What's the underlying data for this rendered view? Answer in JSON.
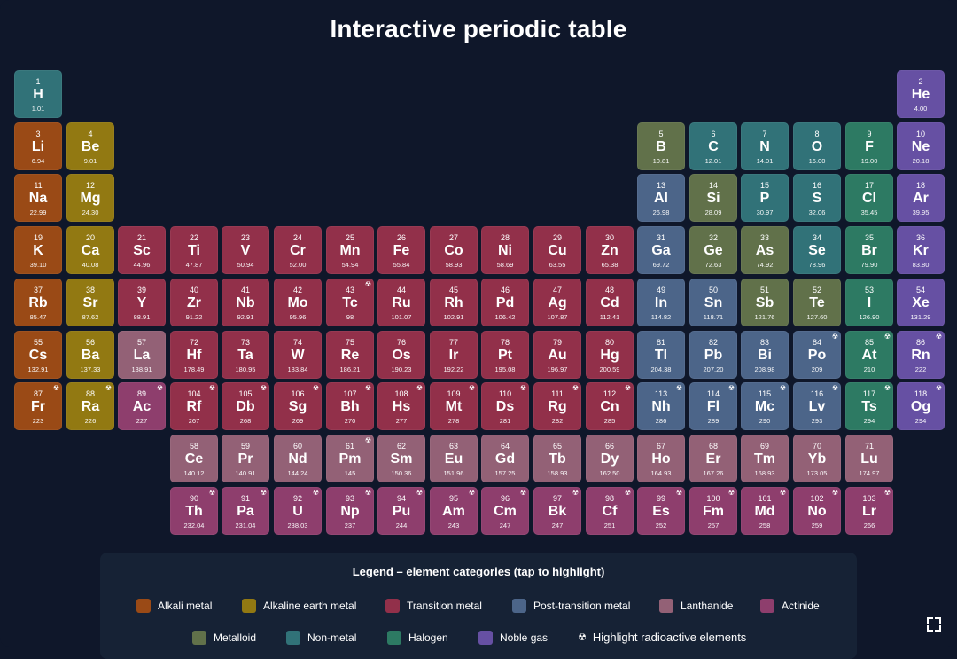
{
  "title": "Interactive periodic table",
  "categories": {
    "alkali": {
      "label": "Alkali metal",
      "color": "#9a4a16"
    },
    "alkaline": {
      "label": "Alkaline earth metal",
      "color": "#927912"
    },
    "transition": {
      "label": "Transition metal",
      "color": "#92304a"
    },
    "post": {
      "label": "Post-transition metal",
      "color": "#4c6589"
    },
    "lanthanide": {
      "label": "Lanthanide",
      "color": "#936176"
    },
    "actinide": {
      "label": "Actinide",
      "color": "#8e3e6d"
    },
    "metalloid": {
      "label": "Metalloid",
      "color": "#61714a"
    },
    "nonmetal": {
      "label": "Non-metal",
      "color": "#317278"
    },
    "halogen": {
      "label": "Halogen",
      "color": "#2d7a63"
    },
    "noble": {
      "label": "Noble gas",
      "color": "#6650a3"
    }
  },
  "radioactive_icon": "☢",
  "elements": [
    {
      "n": 1,
      "s": "H",
      "m": "1.01",
      "c": "nonmetal",
      "r": 1,
      "col": 1
    },
    {
      "n": 2,
      "s": "He",
      "m": "4.00",
      "c": "noble",
      "r": 1,
      "col": 18
    },
    {
      "n": 3,
      "s": "Li",
      "m": "6.94",
      "c": "alkali",
      "r": 2,
      "col": 1
    },
    {
      "n": 4,
      "s": "Be",
      "m": "9.01",
      "c": "alkaline",
      "r": 2,
      "col": 2
    },
    {
      "n": 5,
      "s": "B",
      "m": "10.81",
      "c": "metalloid",
      "r": 2,
      "col": 13
    },
    {
      "n": 6,
      "s": "C",
      "m": "12.01",
      "c": "nonmetal",
      "r": 2,
      "col": 14
    },
    {
      "n": 7,
      "s": "N",
      "m": "14.01",
      "c": "nonmetal",
      "r": 2,
      "col": 15
    },
    {
      "n": 8,
      "s": "O",
      "m": "16.00",
      "c": "nonmetal",
      "r": 2,
      "col": 16
    },
    {
      "n": 9,
      "s": "F",
      "m": "19.00",
      "c": "halogen",
      "r": 2,
      "col": 17
    },
    {
      "n": 10,
      "s": "Ne",
      "m": "20.18",
      "c": "noble",
      "r": 2,
      "col": 18
    },
    {
      "n": 11,
      "s": "Na",
      "m": "22.99",
      "c": "alkali",
      "r": 3,
      "col": 1
    },
    {
      "n": 12,
      "s": "Mg",
      "m": "24.30",
      "c": "alkaline",
      "r": 3,
      "col": 2
    },
    {
      "n": 13,
      "s": "Al",
      "m": "26.98",
      "c": "post",
      "r": 3,
      "col": 13
    },
    {
      "n": 14,
      "s": "Si",
      "m": "28.09",
      "c": "metalloid",
      "r": 3,
      "col": 14
    },
    {
      "n": 15,
      "s": "P",
      "m": "30.97",
      "c": "nonmetal",
      "r": 3,
      "col": 15
    },
    {
      "n": 16,
      "s": "S",
      "m": "32.06",
      "c": "nonmetal",
      "r": 3,
      "col": 16
    },
    {
      "n": 17,
      "s": "Cl",
      "m": "35.45",
      "c": "halogen",
      "r": 3,
      "col": 17
    },
    {
      "n": 18,
      "s": "Ar",
      "m": "39.95",
      "c": "noble",
      "r": 3,
      "col": 18
    },
    {
      "n": 19,
      "s": "K",
      "m": "39.10",
      "c": "alkali",
      "r": 4,
      "col": 1
    },
    {
      "n": 20,
      "s": "Ca",
      "m": "40.08",
      "c": "alkaline",
      "r": 4,
      "col": 2
    },
    {
      "n": 21,
      "s": "Sc",
      "m": "44.96",
      "c": "transition",
      "r": 4,
      "col": 3
    },
    {
      "n": 22,
      "s": "Ti",
      "m": "47.87",
      "c": "transition",
      "r": 4,
      "col": 4
    },
    {
      "n": 23,
      "s": "V",
      "m": "50.94",
      "c": "transition",
      "r": 4,
      "col": 5
    },
    {
      "n": 24,
      "s": "Cr",
      "m": "52.00",
      "c": "transition",
      "r": 4,
      "col": 6
    },
    {
      "n": 25,
      "s": "Mn",
      "m": "54.94",
      "c": "transition",
      "r": 4,
      "col": 7
    },
    {
      "n": 26,
      "s": "Fe",
      "m": "55.84",
      "c": "transition",
      "r": 4,
      "col": 8
    },
    {
      "n": 27,
      "s": "Co",
      "m": "58.93",
      "c": "transition",
      "r": 4,
      "col": 9
    },
    {
      "n": 28,
      "s": "Ni",
      "m": "58.69",
      "c": "transition",
      "r": 4,
      "col": 10
    },
    {
      "n": 29,
      "s": "Cu",
      "m": "63.55",
      "c": "transition",
      "r": 4,
      "col": 11
    },
    {
      "n": 30,
      "s": "Zn",
      "m": "65.38",
      "c": "transition",
      "r": 4,
      "col": 12
    },
    {
      "n": 31,
      "s": "Ga",
      "m": "69.72",
      "c": "post",
      "r": 4,
      "col": 13
    },
    {
      "n": 32,
      "s": "Ge",
      "m": "72.63",
      "c": "metalloid",
      "r": 4,
      "col": 14
    },
    {
      "n": 33,
      "s": "As",
      "m": "74.92",
      "c": "metalloid",
      "r": 4,
      "col": 15
    },
    {
      "n": 34,
      "s": "Se",
      "m": "78.96",
      "c": "nonmetal",
      "r": 4,
      "col": 16
    },
    {
      "n": 35,
      "s": "Br",
      "m": "79.90",
      "c": "halogen",
      "r": 4,
      "col": 17
    },
    {
      "n": 36,
      "s": "Kr",
      "m": "83.80",
      "c": "noble",
      "r": 4,
      "col": 18
    },
    {
      "n": 37,
      "s": "Rb",
      "m": "85.47",
      "c": "alkali",
      "r": 5,
      "col": 1
    },
    {
      "n": 38,
      "s": "Sr",
      "m": "87.62",
      "c": "alkaline",
      "r": 5,
      "col": 2
    },
    {
      "n": 39,
      "s": "Y",
      "m": "88.91",
      "c": "transition",
      "r": 5,
      "col": 3
    },
    {
      "n": 40,
      "s": "Zr",
      "m": "91.22",
      "c": "transition",
      "r": 5,
      "col": 4
    },
    {
      "n": 41,
      "s": "Nb",
      "m": "92.91",
      "c": "transition",
      "r": 5,
      "col": 5
    },
    {
      "n": 42,
      "s": "Mo",
      "m": "95.96",
      "c": "transition",
      "r": 5,
      "col": 6
    },
    {
      "n": 43,
      "s": "Tc",
      "m": "98",
      "c": "transition",
      "r": 5,
      "col": 7,
      "rad": true
    },
    {
      "n": 44,
      "s": "Ru",
      "m": "101.07",
      "c": "transition",
      "r": 5,
      "col": 8
    },
    {
      "n": 45,
      "s": "Rh",
      "m": "102.91",
      "c": "transition",
      "r": 5,
      "col": 9
    },
    {
      "n": 46,
      "s": "Pd",
      "m": "106.42",
      "c": "transition",
      "r": 5,
      "col": 10
    },
    {
      "n": 47,
      "s": "Ag",
      "m": "107.87",
      "c": "transition",
      "r": 5,
      "col": 11
    },
    {
      "n": 48,
      "s": "Cd",
      "m": "112.41",
      "c": "transition",
      "r": 5,
      "col": 12
    },
    {
      "n": 49,
      "s": "In",
      "m": "114.82",
      "c": "post",
      "r": 5,
      "col": 13
    },
    {
      "n": 50,
      "s": "Sn",
      "m": "118.71",
      "c": "post",
      "r": 5,
      "col": 14
    },
    {
      "n": 51,
      "s": "Sb",
      "m": "121.76",
      "c": "metalloid",
      "r": 5,
      "col": 15
    },
    {
      "n": 52,
      "s": "Te",
      "m": "127.60",
      "c": "metalloid",
      "r": 5,
      "col": 16
    },
    {
      "n": 53,
      "s": "I",
      "m": "126.90",
      "c": "halogen",
      "r": 5,
      "col": 17
    },
    {
      "n": 54,
      "s": "Xe",
      "m": "131.29",
      "c": "noble",
      "r": 5,
      "col": 18
    },
    {
      "n": 55,
      "s": "Cs",
      "m": "132.91",
      "c": "alkali",
      "r": 6,
      "col": 1
    },
    {
      "n": 56,
      "s": "Ba",
      "m": "137.33",
      "c": "alkaline",
      "r": 6,
      "col": 2
    },
    {
      "n": 57,
      "s": "La",
      "m": "138.91",
      "c": "lanthanide",
      "r": 6,
      "col": 3
    },
    {
      "n": 72,
      "s": "Hf",
      "m": "178.49",
      "c": "transition",
      "r": 6,
      "col": 4
    },
    {
      "n": 73,
      "s": "Ta",
      "m": "180.95",
      "c": "transition",
      "r": 6,
      "col": 5
    },
    {
      "n": 74,
      "s": "W",
      "m": "183.84",
      "c": "transition",
      "r": 6,
      "col": 6
    },
    {
      "n": 75,
      "s": "Re",
      "m": "186.21",
      "c": "transition",
      "r": 6,
      "col": 7
    },
    {
      "n": 76,
      "s": "Os",
      "m": "190.23",
      "c": "transition",
      "r": 6,
      "col": 8
    },
    {
      "n": 77,
      "s": "Ir",
      "m": "192.22",
      "c": "transition",
      "r": 6,
      "col": 9
    },
    {
      "n": 78,
      "s": "Pt",
      "m": "195.08",
      "c": "transition",
      "r": 6,
      "col": 10
    },
    {
      "n": 79,
      "s": "Au",
      "m": "196.97",
      "c": "transition",
      "r": 6,
      "col": 11
    },
    {
      "n": 80,
      "s": "Hg",
      "m": "200.59",
      "c": "transition",
      "r": 6,
      "col": 12
    },
    {
      "n": 81,
      "s": "Tl",
      "m": "204.38",
      "c": "post",
      "r": 6,
      "col": 13
    },
    {
      "n": 82,
      "s": "Pb",
      "m": "207.20",
      "c": "post",
      "r": 6,
      "col": 14
    },
    {
      "n": 83,
      "s": "Bi",
      "m": "208.98",
      "c": "post",
      "r": 6,
      "col": 15
    },
    {
      "n": 84,
      "s": "Po",
      "m": "209",
      "c": "post",
      "r": 6,
      "col": 16,
      "rad": true
    },
    {
      "n": 85,
      "s": "At",
      "m": "210",
      "c": "halogen",
      "r": 6,
      "col": 17,
      "rad": true
    },
    {
      "n": 86,
      "s": "Rn",
      "m": "222",
      "c": "noble",
      "r": 6,
      "col": 18,
      "rad": true
    },
    {
      "n": 87,
      "s": "Fr",
      "m": "223",
      "c": "alkali",
      "r": 7,
      "col": 1,
      "rad": true
    },
    {
      "n": 88,
      "s": "Ra",
      "m": "226",
      "c": "alkaline",
      "r": 7,
      "col": 2,
      "rad": true
    },
    {
      "n": 89,
      "s": "Ac",
      "m": "227",
      "c": "actinide",
      "r": 7,
      "col": 3,
      "rad": true
    },
    {
      "n": 104,
      "s": "Rf",
      "m": "267",
      "c": "transition",
      "r": 7,
      "col": 4,
      "rad": true
    },
    {
      "n": 105,
      "s": "Db",
      "m": "268",
      "c": "transition",
      "r": 7,
      "col": 5,
      "rad": true
    },
    {
      "n": 106,
      "s": "Sg",
      "m": "269",
      "c": "transition",
      "r": 7,
      "col": 6,
      "rad": true
    },
    {
      "n": 107,
      "s": "Bh",
      "m": "270",
      "c": "transition",
      "r": 7,
      "col": 7,
      "rad": true
    },
    {
      "n": 108,
      "s": "Hs",
      "m": "277",
      "c": "transition",
      "r": 7,
      "col": 8,
      "rad": true
    },
    {
      "n": 109,
      "s": "Mt",
      "m": "278",
      "c": "transition",
      "r": 7,
      "col": 9,
      "rad": true
    },
    {
      "n": 110,
      "s": "Ds",
      "m": "281",
      "c": "transition",
      "r": 7,
      "col": 10,
      "rad": true
    },
    {
      "n": 111,
      "s": "Rg",
      "m": "282",
      "c": "transition",
      "r": 7,
      "col": 11,
      "rad": true
    },
    {
      "n": 112,
      "s": "Cn",
      "m": "285",
      "c": "transition",
      "r": 7,
      "col": 12,
      "rad": true
    },
    {
      "n": 113,
      "s": "Nh",
      "m": "286",
      "c": "post",
      "r": 7,
      "col": 13,
      "rad": true
    },
    {
      "n": 114,
      "s": "Fl",
      "m": "289",
      "c": "post",
      "r": 7,
      "col": 14,
      "rad": true
    },
    {
      "n": 115,
      "s": "Mc",
      "m": "290",
      "c": "post",
      "r": 7,
      "col": 15,
      "rad": true
    },
    {
      "n": 116,
      "s": "Lv",
      "m": "293",
      "c": "post",
      "r": 7,
      "col": 16,
      "rad": true
    },
    {
      "n": 117,
      "s": "Ts",
      "m": "294",
      "c": "halogen",
      "r": 7,
      "col": 17,
      "rad": true
    },
    {
      "n": 118,
      "s": "Og",
      "m": "294",
      "c": "noble",
      "r": 7,
      "col": 18,
      "rad": true
    },
    {
      "n": 58,
      "s": "Ce",
      "m": "140.12",
      "c": "lanthanide",
      "r": 8,
      "col": 4
    },
    {
      "n": 59,
      "s": "Pr",
      "m": "140.91",
      "c": "lanthanide",
      "r": 8,
      "col": 5
    },
    {
      "n": 60,
      "s": "Nd",
      "m": "144.24",
      "c": "lanthanide",
      "r": 8,
      "col": 6
    },
    {
      "n": 61,
      "s": "Pm",
      "m": "145",
      "c": "lanthanide",
      "r": 8,
      "col": 7,
      "rad": true
    },
    {
      "n": 62,
      "s": "Sm",
      "m": "150.36",
      "c": "lanthanide",
      "r": 8,
      "col": 8
    },
    {
      "n": 63,
      "s": "Eu",
      "m": "151.96",
      "c": "lanthanide",
      "r": 8,
      "col": 9
    },
    {
      "n": 64,
      "s": "Gd",
      "m": "157.25",
      "c": "lanthanide",
      "r": 8,
      "col": 10
    },
    {
      "n": 65,
      "s": "Tb",
      "m": "158.93",
      "c": "lanthanide",
      "r": 8,
      "col": 11
    },
    {
      "n": 66,
      "s": "Dy",
      "m": "162.50",
      "c": "lanthanide",
      "r": 8,
      "col": 12
    },
    {
      "n": 67,
      "s": "Ho",
      "m": "164.93",
      "c": "lanthanide",
      "r": 8,
      "col": 13
    },
    {
      "n": 68,
      "s": "Er",
      "m": "167.26",
      "c": "lanthanide",
      "r": 8,
      "col": 14
    },
    {
      "n": 69,
      "s": "Tm",
      "m": "168.93",
      "c": "lanthanide",
      "r": 8,
      "col": 15
    },
    {
      "n": 70,
      "s": "Yb",
      "m": "173.05",
      "c": "lanthanide",
      "r": 8,
      "col": 16
    },
    {
      "n": 71,
      "s": "Lu",
      "m": "174.97",
      "c": "lanthanide",
      "r": 8,
      "col": 17
    },
    {
      "n": 90,
      "s": "Th",
      "m": "232.04",
      "c": "actinide",
      "r": 9,
      "col": 4,
      "rad": true
    },
    {
      "n": 91,
      "s": "Pa",
      "m": "231.04",
      "c": "actinide",
      "r": 9,
      "col": 5,
      "rad": true
    },
    {
      "n": 92,
      "s": "U",
      "m": "238.03",
      "c": "actinide",
      "r": 9,
      "col": 6,
      "rad": true
    },
    {
      "n": 93,
      "s": "Np",
      "m": "237",
      "c": "actinide",
      "r": 9,
      "col": 7,
      "rad": true
    },
    {
      "n": 94,
      "s": "Pu",
      "m": "244",
      "c": "actinide",
      "r": 9,
      "col": 8,
      "rad": true
    },
    {
      "n": 95,
      "s": "Am",
      "m": "243",
      "c": "actinide",
      "r": 9,
      "col": 9,
      "rad": true
    },
    {
      "n": 96,
      "s": "Cm",
      "m": "247",
      "c": "actinide",
      "r": 9,
      "col": 10,
      "rad": true
    },
    {
      "n": 97,
      "s": "Bk",
      "m": "247",
      "c": "actinide",
      "r": 9,
      "col": 11,
      "rad": true
    },
    {
      "n": 98,
      "s": "Cf",
      "m": "251",
      "c": "actinide",
      "r": 9,
      "col": 12,
      "rad": true
    },
    {
      "n": 99,
      "s": "Es",
      "m": "252",
      "c": "actinide",
      "r": 9,
      "col": 13,
      "rad": true
    },
    {
      "n": 100,
      "s": "Fm",
      "m": "257",
      "c": "actinide",
      "r": 9,
      "col": 14,
      "rad": true
    },
    {
      "n": 101,
      "s": "Md",
      "m": "258",
      "c": "actinide",
      "r": 9,
      "col": 15,
      "rad": true
    },
    {
      "n": 102,
      "s": "No",
      "m": "259",
      "c": "actinide",
      "r": 9,
      "col": 16,
      "rad": true
    },
    {
      "n": 103,
      "s": "Lr",
      "m": "266",
      "c": "actinide",
      "r": 9,
      "col": 17,
      "rad": true
    }
  ],
  "legend": {
    "title": "Legend – element categories (tap to highlight)",
    "items": [
      {
        "key": "alkali",
        "label": "Alkali metal"
      },
      {
        "key": "alkaline",
        "label": "Alkaline earth metal"
      },
      {
        "key": "transition",
        "label": "Transition metal"
      },
      {
        "key": "post",
        "label": "Post-transition metal"
      },
      {
        "key": "lanthanide",
        "label": "Lanthanide"
      },
      {
        "key": "actinide",
        "label": "Actinide"
      },
      {
        "key": "metalloid",
        "label": "Metalloid"
      },
      {
        "key": "nonmetal",
        "label": "Non-metal"
      },
      {
        "key": "halogen",
        "label": "Halogen"
      },
      {
        "key": "noble",
        "label": "Noble gas"
      }
    ],
    "radioactive_label": "Highlight radioactive elements"
  },
  "fullscreen_icon": "fullscreen-icon"
}
